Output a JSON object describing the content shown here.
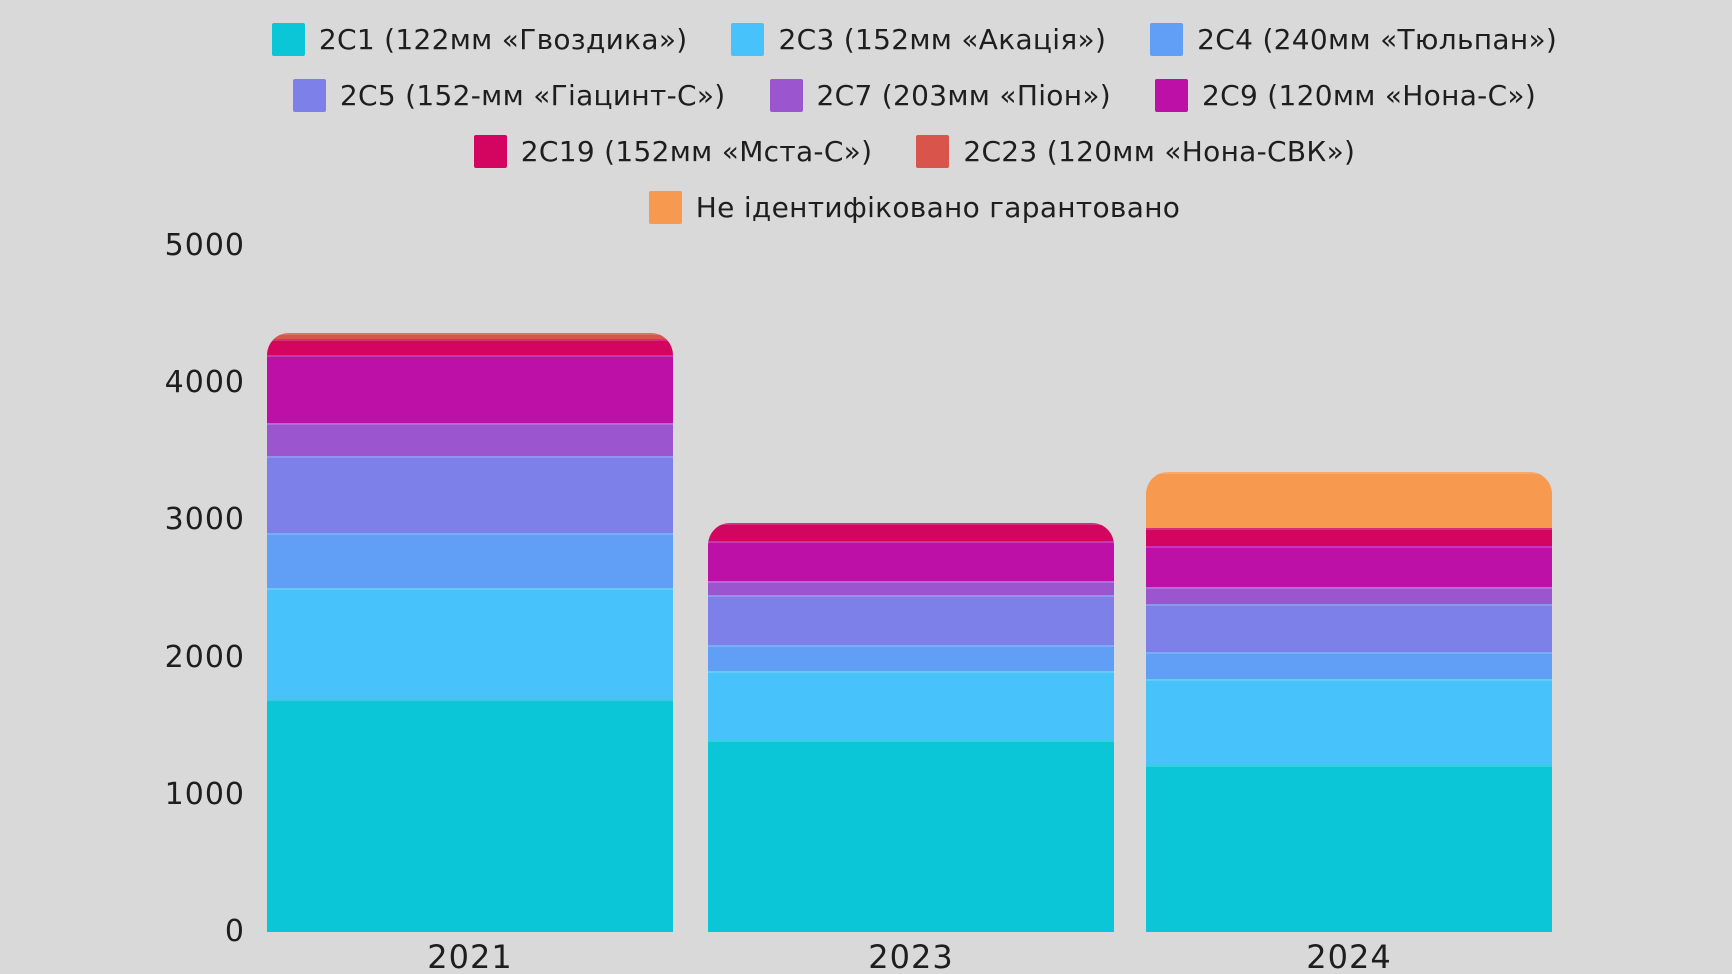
{
  "background_color": "#d9d9d9",
  "text_color": "#1e1e1e",
  "legend_rows": [
    [
      0,
      1,
      2
    ],
    [
      3,
      4,
      5
    ],
    [
      6,
      7
    ],
    [
      8
    ]
  ],
  "chart_data": {
    "type": "bar",
    "stacked": true,
    "title": "",
    "xlabel": "",
    "ylabel": "",
    "categories": [
      "2021",
      "2023",
      "2024"
    ],
    "series": [
      {
        "id": "2s1",
        "name": "2С1 (122мм «Гвоздика»)",
        "color": "#0bc6d6",
        "values": [
          1700,
          1400,
          1220
        ]
      },
      {
        "id": "2s3",
        "name": "2С3 (152мм «Акація»)",
        "color": "#47c2fb",
        "values": [
          805,
          505,
          625
        ]
      },
      {
        "id": "2s4",
        "name": "2С4 (240мм «Тюльпан»)",
        "color": "#609ff5",
        "values": [
          405,
          190,
          195
        ]
      },
      {
        "id": "2s5",
        "name": "2С5 (152-мм «Гіацинт-С»)",
        "color": "#7d80e8",
        "values": [
          560,
          360,
          350
        ]
      },
      {
        "id": "2s7",
        "name": "2С7 (203мм «Піон»)",
        "color": "#9b56cf",
        "values": [
          240,
          100,
          125
        ]
      },
      {
        "id": "2s9",
        "name": "2С9 (120мм «Нона-С»)",
        "color": "#bc10a6",
        "values": [
          495,
          295,
          295
        ]
      },
      {
        "id": "2s19",
        "name": "2С19 (152мм «Мста-С»)",
        "color": "#d30560",
        "values": [
          120,
          130,
          135
        ]
      },
      {
        "id": "2s23",
        "name": "2С23 (120мм «Нона-СВК»)",
        "color": "#d9544a",
        "values": [
          40,
          0,
          0
        ]
      },
      {
        "id": "unidentified",
        "name": "Не ідентифіковано гарантовано",
        "color": "#f7994f",
        "values": [
          0,
          0,
          405
        ]
      }
    ],
    "ylim": [
      0,
      5000
    ],
    "y_ticks": [
      0,
      1000,
      2000,
      3000,
      4000,
      5000
    ],
    "grid": false,
    "legend_position": "top"
  }
}
